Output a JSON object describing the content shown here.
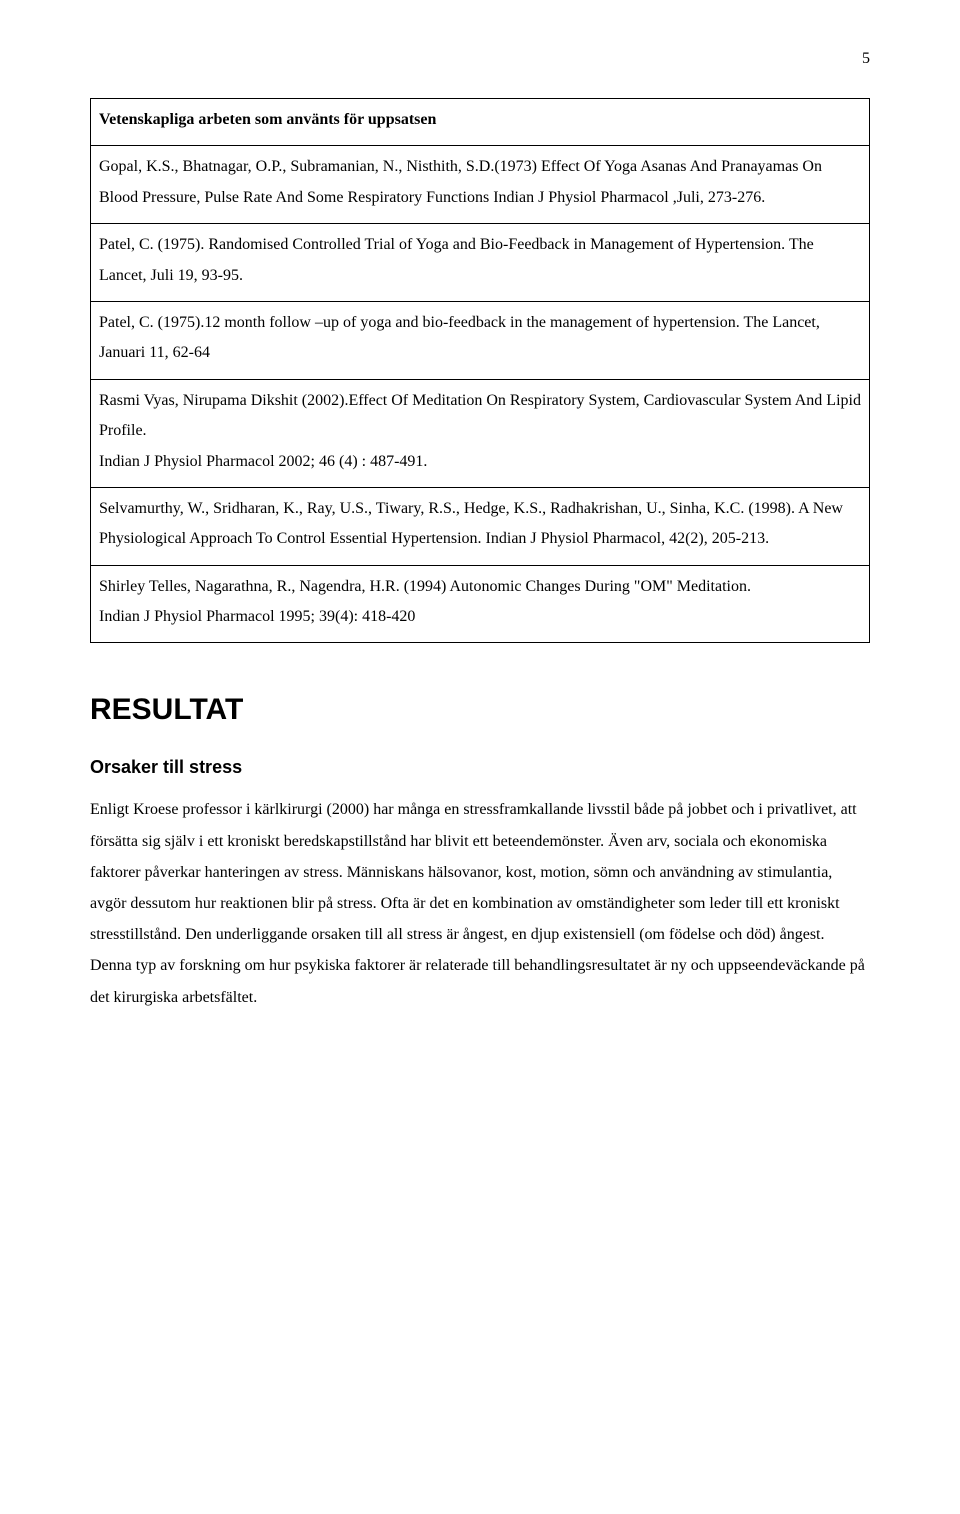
{
  "page_number": "5",
  "refs_header": "Vetenskapliga arbeten som använts för uppsatsen",
  "references": [
    "Gopal, K.S., Bhatnagar, O.P., Subramanian, N., Nisthith, S.D.(1973) Effect Of Yoga Asanas And Pranayamas On Blood Pressure, Pulse Rate And Some Respiratory Functions Indian J Physiol Pharmacol ,Juli, 273-276.",
    "Patel, C. (1975). Randomised Controlled Trial of Yoga and Bio-Feedback in Management of Hypertension. The Lancet, Juli 19, 93-95.",
    "Patel, C. (1975).12 month follow –up of yoga and bio-feedback in the management of hypertension. The Lancet, Januari 11, 62-64",
    "Rasmi Vyas, Nirupama Dikshit (2002).Effect Of Meditation On Respiratory System, Cardiovascular System And Lipid Profile.\nIndian J Physiol Pharmacol 2002; 46 (4) : 487-491.",
    "Selvamurthy, W., Sridharan, K., Ray, U.S., Tiwary, R.S., Hedge, K.S., Radhakrishan, U., Sinha, K.C. (1998). A New Physiological Approach To Control Essential Hypertension. Indian J Physiol Pharmacol, 42(2), 205-213.",
    "Shirley Telles, Nagarathna, R., Nagendra, H.R. (1994) Autonomic Changes During \"OM\" Meditation.\nIndian J Physiol Pharmacol 1995; 39(4): 418-420"
  ],
  "heading1": "RESULTAT",
  "heading2": "Orsaker till stress",
  "body": "Enligt Kroese professor i kärlkirurgi (2000) har många en stressframkallande livsstil både på jobbet och i privatlivet, att försätta sig själv i ett kroniskt beredskapstillstånd har blivit ett beteendemönster. Även arv, sociala och ekonomiska faktorer påverkar hanteringen av stress. Människans hälsovanor, kost, motion, sömn och användning av stimulantia, avgör dessutom hur reaktionen blir på stress. Ofta är det en kombination av omständigheter som leder till ett kroniskt stresstillstånd. Den underliggande orsaken till all stress är ångest, en djup existensiell (om födelse och död) ångest. Denna typ av forskning om hur psykiska faktorer är relaterade till behandlingsresultatet är ny och uppseendeväckande på det kirurgiska arbetsfältet."
}
